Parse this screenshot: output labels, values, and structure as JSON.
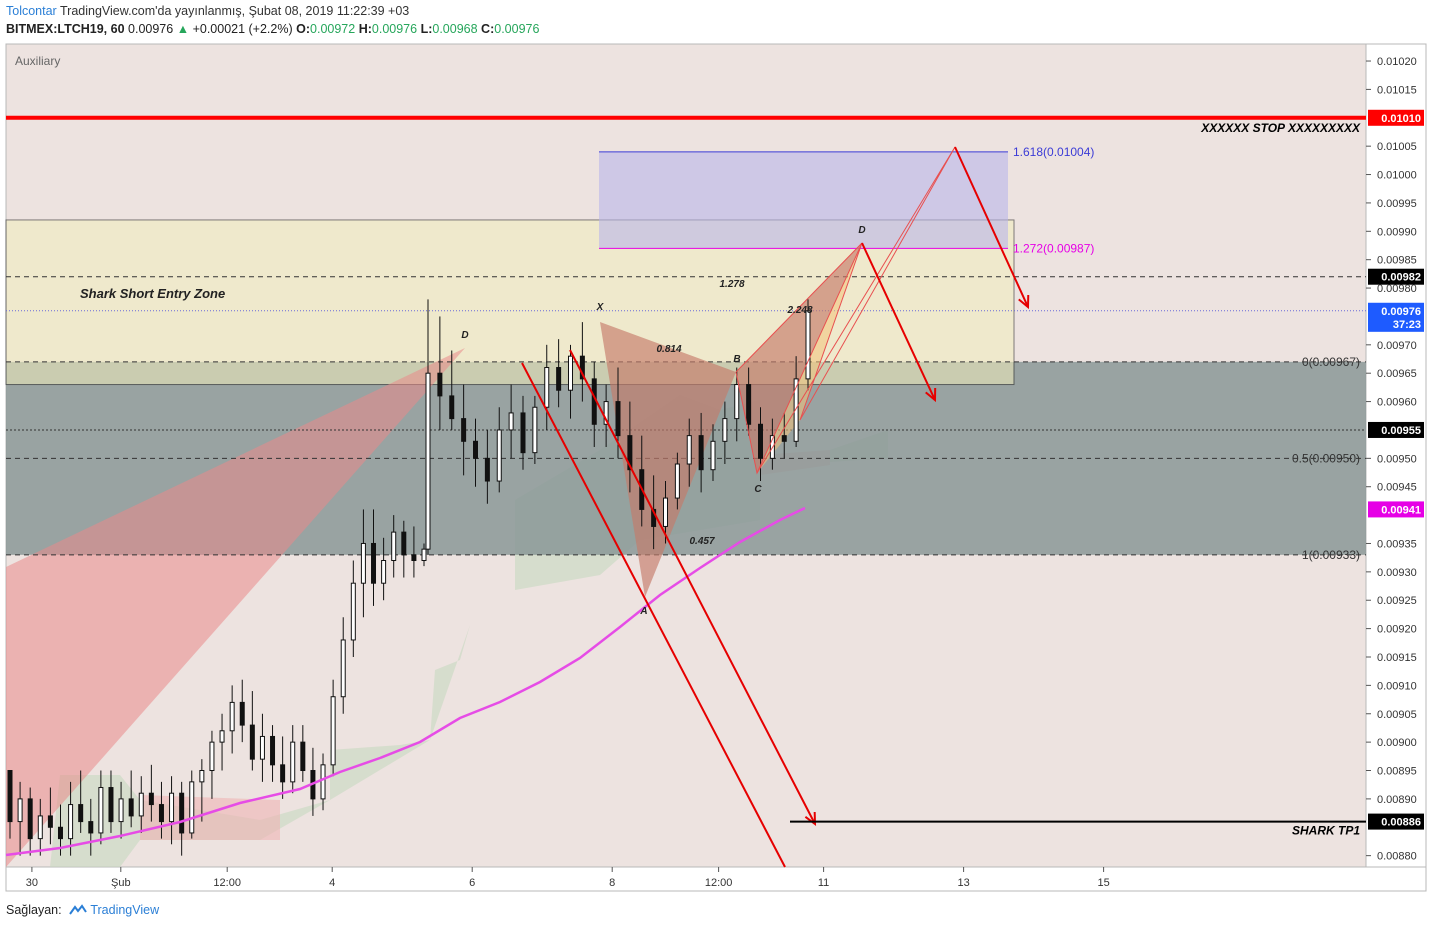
{
  "header": {
    "author": "Tolcontar",
    "published": "TradingView.com'da yayınlanmış, Şubat 08, 2019 11:22:39 +03",
    "symbol": "BITMEX:LTCH19, 60",
    "last": "0.00976",
    "change": "+0.00021 (+2.2%)",
    "o_label": "O:",
    "o_value": "0.00972",
    "h_label": "H:",
    "h_value": "0.00976",
    "l_label": "L:",
    "l_value": "0.00968",
    "c_label": "C:",
    "c_value": "0.00976"
  },
  "footer": {
    "provided_by": "Sağlayan:",
    "brand": "TradingView"
  },
  "chart_data": {
    "type": "candlestick",
    "pane_label": "Auxiliary",
    "y_axis": {
      "range": [
        0.00878,
        0.01023
      ],
      "ticks": [
        "0.01020",
        "0.01015",
        "0.01005",
        "0.01000",
        "0.00995",
        "0.00990",
        "0.00985",
        "0.00980",
        "0.00970",
        "0.00965",
        "0.00960",
        "0.00950",
        "0.00945",
        "0.00935",
        "0.00930",
        "0.00925",
        "0.00920",
        "0.00915",
        "0.00910",
        "0.00905",
        "0.00900",
        "0.00895",
        "0.00890",
        "0.00880"
      ]
    },
    "x_axis": {
      "ticks": [
        {
          "label": "30",
          "x": 0.185
        },
        {
          "label": "Şub",
          "x": 0.82
        },
        {
          "label": "12:00",
          "x": 1.58
        },
        {
          "label": "4",
          "x": 2.33
        },
        {
          "label": "6",
          "x": 3.33
        },
        {
          "label": "8",
          "x": 4.33
        },
        {
          "label": "12:00",
          "x": 5.09
        },
        {
          "label": "11",
          "x": 5.84
        },
        {
          "label": "13",
          "x": 6.84
        },
        {
          "label": "15",
          "x": 7.84
        }
      ]
    },
    "price_badges": [
      {
        "label": "0.01010",
        "price": 0.0101,
        "color": "#ff0000"
      },
      {
        "label": "0.00982",
        "price": 0.00982,
        "color": "#000000"
      },
      {
        "label": "0.00976",
        "price": 0.00976,
        "color": "#1e5bff"
      },
      {
        "label": "37:23",
        "price": 0.009737,
        "color": "#1e5bff"
      },
      {
        "label": "0.00955",
        "price": 0.00955,
        "color": "#000000"
      },
      {
        "label": "0.00941",
        "price": 0.00941,
        "color": "#e600e6"
      },
      {
        "label": "0.00886",
        "price": 0.00886,
        "color": "#000000"
      }
    ],
    "horizontal_lines": [
      {
        "price": 0.0101,
        "label": "XXXXXX STOP XXXXXXXXX",
        "color": "#ff0000"
      },
      {
        "price": 0.00886,
        "label": "SHARK TP1",
        "color": "#000000"
      }
    ],
    "fib_levels": [
      {
        "label": "0(0.00967)",
        "price": 0.00967
      },
      {
        "label": "0.5(0.00950)",
        "price": 0.0095
      },
      {
        "label": "1(0.00933)",
        "price": 0.00933
      }
    ],
    "extension_levels": [
      {
        "label": "1.618(0.01004)",
        "price": 0.01004,
        "color": "#3b3bd6"
      },
      {
        "label": "1.272(0.00987)",
        "price": 0.00987,
        "color": "#e600e6"
      }
    ],
    "zones": [
      {
        "label": "Shark Short Entry Zone",
        "price_top": 0.00992,
        "price_bottom": 0.00963
      }
    ],
    "pattern_labels": [
      "X",
      "A",
      "B",
      "C",
      "D",
      "D",
      "0.814",
      "0.457",
      "1.278",
      "2.248"
    ],
    "ma_color": "#e64ce6",
    "last_price": 0.00976,
    "candles_ohlc_sample": [
      [
        0.00895,
        0.00895,
        0.00883,
        0.00886
      ],
      [
        0.00886,
        0.00893,
        0.0088,
        0.0089
      ],
      [
        0.0089,
        0.00892,
        0.0088,
        0.00883
      ],
      [
        0.00883,
        0.0089,
        0.0088,
        0.00887
      ],
      [
        0.00887,
        0.00892,
        0.00882,
        0.00885
      ],
      [
        0.00885,
        0.00889,
        0.0088,
        0.00883
      ],
      [
        0.00883,
        0.00893,
        0.0088,
        0.00889
      ],
      [
        0.00889,
        0.00895,
        0.00884,
        0.00886
      ],
      [
        0.00886,
        0.0089,
        0.0088,
        0.00884
      ],
      [
        0.00884,
        0.00895,
        0.00882,
        0.00892
      ],
      [
        0.00892,
        0.00895,
        0.00884,
        0.00886
      ],
      [
        0.00886,
        0.00893,
        0.00883,
        0.0089
      ],
      [
        0.0089,
        0.00895,
        0.00885,
        0.00887
      ],
      [
        0.00887,
        0.00894,
        0.00884,
        0.00891
      ],
      [
        0.00891,
        0.00896,
        0.00886,
        0.00889
      ],
      [
        0.00889,
        0.00893,
        0.00883,
        0.00886
      ],
      [
        0.00886,
        0.00894,
        0.00882,
        0.00891
      ],
      [
        0.00891,
        0.00893,
        0.0088,
        0.00884
      ],
      [
        0.00884,
        0.00895,
        0.00883,
        0.00893
      ],
      [
        0.00893,
        0.00897,
        0.00886,
        0.00895
      ],
      [
        0.00895,
        0.00902,
        0.0089,
        0.009
      ],
      [
        0.009,
        0.00905,
        0.00895,
        0.00902
      ],
      [
        0.00902,
        0.0091,
        0.00898,
        0.00907
      ],
      [
        0.00907,
        0.00911,
        0.009,
        0.00903
      ],
      [
        0.00903,
        0.00909,
        0.00895,
        0.00897
      ],
      [
        0.00897,
        0.00905,
        0.00893,
        0.00901
      ],
      [
        0.00901,
        0.00903,
        0.00893,
        0.00896
      ],
      [
        0.00896,
        0.00901,
        0.0089,
        0.00893
      ],
      [
        0.00893,
        0.00903,
        0.00891,
        0.009
      ],
      [
        0.009,
        0.00903,
        0.00893,
        0.00895
      ],
      [
        0.00895,
        0.00899,
        0.00887,
        0.0089
      ],
      [
        0.0089,
        0.00898,
        0.00888,
        0.00896
      ],
      [
        0.00896,
        0.00911,
        0.00894,
        0.00908
      ],
      [
        0.00908,
        0.00922,
        0.00905,
        0.00918
      ],
      [
        0.00918,
        0.00932,
        0.00915,
        0.00928
      ],
      [
        0.00928,
        0.00941,
        0.00922,
        0.00935
      ],
      [
        0.00935,
        0.00941,
        0.00924,
        0.00928
      ],
      [
        0.00928,
        0.00936,
        0.00925,
        0.00932
      ],
      [
        0.00932,
        0.0094,
        0.00929,
        0.00937
      ],
      [
        0.00937,
        0.00939,
        0.00929,
        0.00933
      ],
      [
        0.00933,
        0.00938,
        0.00929,
        0.00932
      ],
      [
        0.00932,
        0.00935,
        0.00931,
        0.00934
      ],
      [
        0.00934,
        0.00978,
        0.00933,
        0.00965
      ],
      [
        0.00965,
        0.00975,
        0.00955,
        0.00961
      ],
      [
        0.00961,
        0.00969,
        0.00955,
        0.00957
      ],
      [
        0.00957,
        0.00963,
        0.00947,
        0.00953
      ],
      [
        0.00953,
        0.00957,
        0.00945,
        0.0095
      ],
      [
        0.0095,
        0.00955,
        0.00942,
        0.00946
      ],
      [
        0.00946,
        0.00959,
        0.00944,
        0.00955
      ],
      [
        0.00955,
        0.00963,
        0.0095,
        0.00958
      ],
      [
        0.00958,
        0.00961,
        0.00948,
        0.00951
      ],
      [
        0.00951,
        0.00961,
        0.00949,
        0.00959
      ],
      [
        0.00959,
        0.0097,
        0.00955,
        0.00966
      ],
      [
        0.00966,
        0.00971,
        0.00959,
        0.00962
      ],
      [
        0.00962,
        0.0097,
        0.00957,
        0.00968
      ],
      [
        0.00968,
        0.00974,
        0.0096,
        0.00964
      ],
      [
        0.00964,
        0.00967,
        0.00952,
        0.00956
      ],
      [
        0.00956,
        0.00963,
        0.00952,
        0.0096
      ],
      [
        0.0096,
        0.00966,
        0.0095,
        0.00954
      ],
      [
        0.00954,
        0.0096,
        0.00944,
        0.00948
      ],
      [
        0.00948,
        0.00954,
        0.00938,
        0.00941
      ],
      [
        0.00941,
        0.00947,
        0.00934,
        0.00938
      ],
      [
        0.00938,
        0.00946,
        0.00935,
        0.00943
      ],
      [
        0.00943,
        0.00951,
        0.00941,
        0.00949
      ],
      [
        0.00949,
        0.00957,
        0.00945,
        0.00954
      ],
      [
        0.00954,
        0.00958,
        0.00944,
        0.00948
      ],
      [
        0.00948,
        0.00956,
        0.00946,
        0.00953
      ],
      [
        0.00953,
        0.0096,
        0.00949,
        0.00957
      ],
      [
        0.00957,
        0.00966,
        0.00953,
        0.00963
      ],
      [
        0.00963,
        0.00966,
        0.00954,
        0.00956
      ],
      [
        0.00956,
        0.00959,
        0.00946,
        0.0095
      ],
      [
        0.0095,
        0.00957,
        0.00948,
        0.00954
      ],
      [
        0.00954,
        0.00958,
        0.0095,
        0.00953
      ],
      [
        0.00953,
        0.00968,
        0.00952,
        0.00964
      ],
      [
        0.00964,
        0.00978,
        0.00962,
        0.00976
      ]
    ]
  }
}
